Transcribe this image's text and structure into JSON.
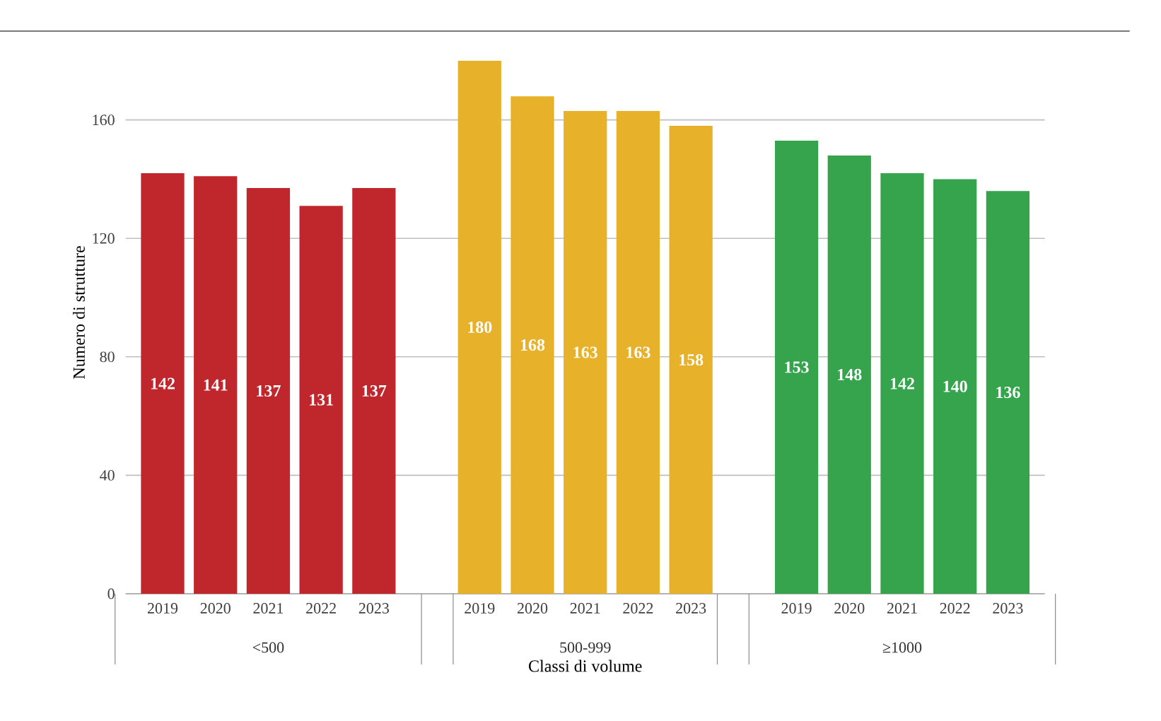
{
  "chart_data": {
    "type": "bar",
    "xlabel": "Classi di volume",
    "ylabel": "Numero di strutture",
    "categories": [
      "2019",
      "2020",
      "2021",
      "2022",
      "2023",
      "2019",
      "2020",
      "2021",
      "2022",
      "2023",
      "2019",
      "2020",
      "2021",
      "2022",
      "2023"
    ],
    "series": [
      {
        "color": "#c0272d",
        "values": [
          142,
          141,
          137,
          131,
          137,
          null,
          null,
          null,
          null,
          null,
          null,
          null,
          null,
          null,
          null
        ]
      },
      {
        "color": "#e8b12a",
        "values": [
          null,
          null,
          null,
          null,
          null,
          180,
          168,
          163,
          163,
          158,
          null,
          null,
          null,
          null,
          null
        ]
      },
      {
        "color": "#35a44c",
        "values": [
          null,
          null,
          null,
          null,
          null,
          null,
          null,
          null,
          null,
          null,
          153,
          148,
          142,
          140,
          136
        ]
      }
    ],
    "annotations": [
      "<500",
      "500-999",
      "≥1000"
    ],
    "ylim": [
      0,
      190
    ],
    "yticks": [
      0,
      40,
      80,
      120,
      160
    ],
    "grid": "y",
    "legend": false,
    "data_labels": true
  }
}
